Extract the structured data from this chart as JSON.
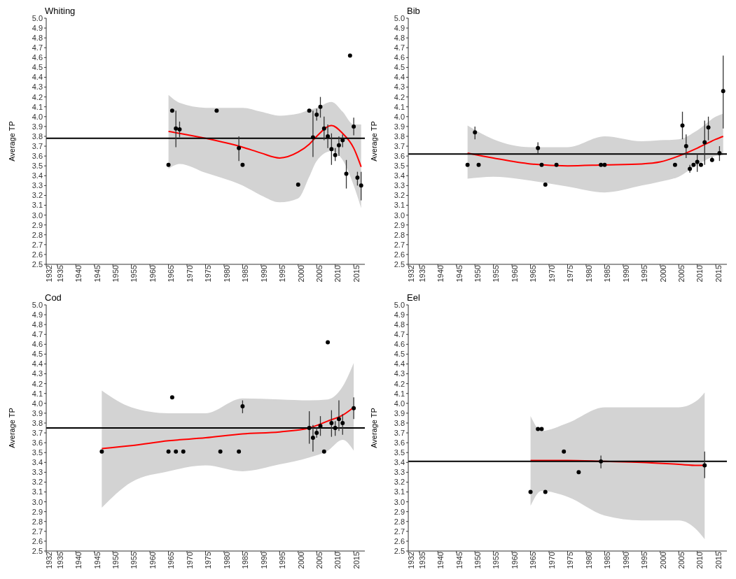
{
  "chart_data": [
    {
      "type": "scatter",
      "title": "Whiting",
      "ylabel": "Average TP",
      "xlim": [
        1932,
        2018
      ],
      "xticks": [
        1932,
        1935,
        1940,
        1945,
        1950,
        1955,
        1960,
        1965,
        1970,
        1975,
        1980,
        1985,
        1990,
        1995,
        2000,
        2005,
        2010,
        2015
      ],
      "ylim": [
        2.5,
        5
      ],
      "yticks": [
        2.5,
        2.6,
        2.7,
        2.8,
        2.9,
        {
          "value": 3,
          "label": "3.0"
        },
        3.1,
        3.2,
        3.3,
        3.4,
        3.5,
        3.6,
        3.7,
        3.8,
        3.9,
        {
          "value": 4,
          "label": "4.0"
        },
        4.1,
        4.2,
        4.3,
        4.4,
        4.5,
        4.6,
        4.7,
        4.8,
        4.9,
        {
          "value": 5,
          "label": "5.0"
        }
      ],
      "grid": false,
      "legend": false,
      "ref_lines": [
        {
          "axis": "y",
          "value": 3.78,
          "color": "#000000"
        }
      ],
      "series": [
        {
          "marker": "circle",
          "color": "#000000",
          "x": [
            1965,
            1966,
            1967,
            1968,
            1978,
            1984,
            1985,
            2000,
            2003,
            2004,
            2005,
            2006,
            2007,
            2008,
            2009,
            2010,
            2011,
            2012,
            2013,
            2014,
            2015,
            2016,
            2017
          ],
          "values": [
            3.51,
            4.06,
            3.88,
            3.87,
            4.06,
            3.68,
            3.51,
            3.31,
            4.06,
            3.79,
            4.02,
            4.1,
            3.88,
            3.8,
            3.67,
            3.61,
            3.71,
            3.76,
            3.42,
            4.62,
            3.9,
            3.38,
            3.3
          ],
          "errors": [
            null,
            null,
            [
              3.69,
              4.06
            ],
            [
              3.79,
              3.95
            ],
            null,
            [
              3.55,
              3.8
            ],
            null,
            null,
            null,
            [
              3.59,
              4.06
            ],
            [
              3.96,
              4.08
            ],
            [
              3.99,
              4.2
            ],
            [
              3.76,
              4.0
            ],
            [
              3.68,
              3.92
            ],
            [
              3.51,
              3.83
            ],
            [
              3.55,
              3.68
            ],
            [
              3.6,
              3.8
            ],
            [
              3.69,
              3.82
            ],
            [
              3.27,
              3.56
            ],
            null,
            [
              3.81,
              3.99
            ],
            [
              3.3,
              3.44
            ],
            [
              3.15,
              3.44
            ]
          ]
        },
        {
          "type": "line",
          "color": "#ff0000",
          "line_style": "solid",
          "x": [
            1965,
            1968,
            1975,
            1985,
            1990,
            1995,
            2000,
            2003,
            2005,
            2009,
            2012,
            2015,
            2017
          ],
          "values": [
            3.85,
            3.83,
            3.78,
            3.69,
            3.63,
            3.58,
            3.64,
            3.72,
            3.8,
            3.91,
            3.83,
            3.68,
            3.49
          ],
          "upper": [
            4.22,
            4.14,
            4.09,
            4.09,
            4.05,
            4.01,
            4.03,
            4.07,
            4.09,
            4.15,
            4.05,
            3.92,
            3.92
          ],
          "lower": [
            3.47,
            3.52,
            3.43,
            3.3,
            3.2,
            3.13,
            3.17,
            3.39,
            3.55,
            3.65,
            3.56,
            3.3,
            3.07
          ]
        }
      ]
    },
    {
      "type": "scatter",
      "title": "Bib",
      "ylabel": "Average TP",
      "xlim": [
        1932,
        2018
      ],
      "xticks": [
        1932,
        1935,
        1940,
        1945,
        1950,
        1955,
        1960,
        1965,
        1970,
        1975,
        1980,
        1985,
        1990,
        1995,
        2000,
        2005,
        2010,
        2015
      ],
      "ylim": [
        2.5,
        5
      ],
      "yticks": [
        2.5,
        2.6,
        2.7,
        2.8,
        2.9,
        {
          "value": 3,
          "label": "3.0"
        },
        3.1,
        3.2,
        3.3,
        3.4,
        3.5,
        3.6,
        3.7,
        3.8,
        3.9,
        {
          "value": 4,
          "label": "4.0"
        },
        4.1,
        4.2,
        4.3,
        4.4,
        4.5,
        4.6,
        4.7,
        4.8,
        4.9,
        {
          "value": 5,
          "label": "5.0"
        }
      ],
      "grid": false,
      "legend": false,
      "ref_lines": [
        {
          "axis": "y",
          "value": 3.62,
          "color": "#000000"
        }
      ],
      "series": [
        {
          "marker": "circle",
          "color": "#000000",
          "x": [
            1948,
            1950,
            1951,
            1967,
            1968,
            1969,
            1972,
            1984,
            1985,
            2004,
            2006,
            2007,
            2008,
            2009,
            2010,
            2011,
            2012,
            2013,
            2014,
            2016,
            2017
          ],
          "values": [
            3.51,
            3.84,
            3.51,
            3.68,
            3.51,
            3.31,
            3.51,
            3.51,
            3.51,
            3.51,
            3.91,
            3.7,
            3.47,
            3.51,
            3.54,
            3.51,
            3.74,
            3.89,
            3.56,
            3.63,
            4.26
          ],
          "errors": [
            null,
            [
              3.77,
              3.9
            ],
            null,
            [
              3.63,
              3.74
            ],
            null,
            null,
            null,
            null,
            null,
            null,
            [
              3.77,
              4.05
            ],
            [
              3.58,
              3.82
            ],
            [
              3.43,
              3.51
            ],
            null,
            [
              3.44,
              3.62
            ],
            null,
            [
              3.51,
              3.96
            ],
            [
              3.76,
              4.0
            ],
            [
              3.54,
              3.59
            ],
            [
              3.55,
              3.7
            ],
            [
              3.88,
              4.62
            ]
          ]
        },
        {
          "type": "line",
          "color": "#ff0000",
          "line_style": "solid",
          "x": [
            1948,
            1955,
            1965,
            1975,
            1985,
            1995,
            2000,
            2005,
            2010,
            2015,
            2017
          ],
          "values": [
            3.63,
            3.58,
            3.52,
            3.5,
            3.51,
            3.52,
            3.54,
            3.6,
            3.68,
            3.77,
            3.8
          ],
          "upper": [
            3.91,
            3.77,
            3.69,
            3.69,
            3.8,
            3.75,
            3.76,
            3.77,
            3.86,
            4.0,
            4.03
          ],
          "lower": [
            3.37,
            3.39,
            3.35,
            3.29,
            3.23,
            3.3,
            3.34,
            3.39,
            3.51,
            3.6,
            3.61
          ]
        }
      ]
    },
    {
      "type": "scatter",
      "title": "Cod",
      "ylabel": "Average TP",
      "xlim": [
        1932,
        2018
      ],
      "xticks": [
        1932,
        1935,
        1940,
        1945,
        1950,
        1955,
        1960,
        1965,
        1970,
        1975,
        1980,
        1985,
        1990,
        1995,
        2000,
        2005,
        2010,
        2015
      ],
      "ylim": [
        2.5,
        5
      ],
      "yticks": [
        2.5,
        2.6,
        2.7,
        2.8,
        2.9,
        {
          "value": 3,
          "label": "3.0"
        },
        3.1,
        3.2,
        3.3,
        3.4,
        3.5,
        3.6,
        3.7,
        3.8,
        3.9,
        {
          "value": 4,
          "label": "4.0"
        },
        4.1,
        4.2,
        4.3,
        4.4,
        4.5,
        4.6,
        4.7,
        4.8,
        4.9,
        {
          "value": 5,
          "label": "5.0"
        }
      ],
      "grid": false,
      "legend": false,
      "ref_lines": [
        {
          "axis": "y",
          "value": 3.75,
          "color": "#000000"
        }
      ],
      "series": [
        {
          "marker": "circle",
          "color": "#000000",
          "x": [
            1947,
            1965,
            1966,
            1967,
            1969,
            1979,
            1984,
            1985,
            2003,
            2004,
            2005,
            2006,
            2007,
            2008,
            2009,
            2010,
            2011,
            2012,
            2015
          ],
          "values": [
            3.51,
            3.51,
            4.06,
            3.51,
            3.51,
            3.51,
            3.51,
            3.97,
            3.75,
            3.65,
            3.7,
            3.77,
            3.51,
            4.62,
            3.8,
            3.75,
            3.84,
            3.8,
            3.95
          ],
          "errors": [
            null,
            null,
            null,
            null,
            null,
            null,
            null,
            [
              3.9,
              4.03
            ],
            [
              3.59,
              3.92
            ],
            [
              3.51,
              3.78
            ],
            [
              3.65,
              3.75
            ],
            [
              3.67,
              3.87
            ],
            null,
            null,
            [
              3.66,
              3.93
            ],
            [
              3.67,
              3.82
            ],
            [
              3.72,
              4.03
            ],
            [
              3.68,
              3.89
            ],
            [
              3.84,
              4.06
            ]
          ]
        },
        {
          "type": "line",
          "color": "#ff0000",
          "line_style": "solid",
          "x": [
            1947,
            1955,
            1965,
            1975,
            1985,
            1995,
            2003,
            2008,
            2012,
            2015
          ],
          "values": [
            3.54,
            3.57,
            3.62,
            3.65,
            3.69,
            3.71,
            3.75,
            3.82,
            3.88,
            3.96
          ],
          "upper": [
            4.13,
            3.96,
            3.9,
            3.9,
            4.05,
            4.04,
            4.03,
            4.04,
            4.17,
            4.41
          ],
          "lower": [
            2.94,
            3.2,
            3.31,
            3.37,
            3.31,
            3.38,
            3.45,
            3.52,
            3.63,
            3.52
          ]
        }
      ]
    },
    {
      "type": "scatter",
      "title": "Eel",
      "ylabel": "Average TP",
      "xlim": [
        1932,
        2018
      ],
      "xticks": [
        1932,
        1935,
        1940,
        1945,
        1950,
        1955,
        1960,
        1965,
        1970,
        1975,
        1980,
        1985,
        1990,
        1995,
        2000,
        2005,
        2010,
        2015
      ],
      "ylim": [
        2.5,
        5
      ],
      "yticks": [
        2.5,
        2.6,
        2.7,
        2.8,
        2.9,
        {
          "value": 3,
          "label": "3.0"
        },
        3.1,
        3.2,
        3.3,
        3.4,
        3.5,
        3.6,
        3.7,
        3.8,
        3.9,
        {
          "value": 4,
          "label": "4.0"
        },
        4.1,
        4.2,
        4.3,
        4.4,
        4.5,
        4.6,
        4.7,
        4.8,
        4.9,
        {
          "value": 5,
          "label": "5.0"
        }
      ],
      "grid": false,
      "legend": false,
      "ref_lines": [
        {
          "axis": "y",
          "value": 3.41,
          "color": "#000000"
        }
      ],
      "series": [
        {
          "marker": "circle",
          "color": "#000000",
          "x": [
            1965,
            1967,
            1968,
            1969,
            1974,
            1978,
            1984,
            2012
          ],
          "values": [
            3.1,
            3.74,
            3.74,
            3.1,
            3.51,
            3.3,
            3.41,
            3.37
          ],
          "errors": [
            null,
            null,
            null,
            null,
            null,
            null,
            [
              3.34,
              3.47
            ],
            [
              3.24,
              3.51
            ]
          ]
        },
        {
          "type": "line",
          "color": "#ff0000",
          "line_style": "solid",
          "x": [
            1965,
            1968,
            1975,
            1985,
            1995,
            2005,
            2010,
            2012
          ],
          "values": [
            3.42,
            3.42,
            3.42,
            3.41,
            3.4,
            3.38,
            3.37,
            3.37
          ],
          "upper": [
            3.87,
            3.72,
            3.8,
            3.96,
            3.96,
            3.96,
            4.03,
            4.11
          ],
          "lower": [
            2.96,
            3.11,
            3.05,
            2.86,
            2.81,
            2.81,
            2.71,
            2.62
          ]
        }
      ]
    }
  ]
}
